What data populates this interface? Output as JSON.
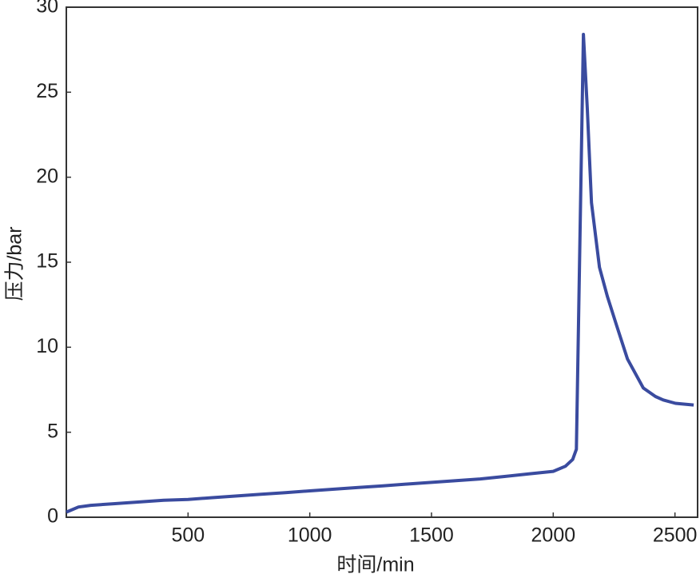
{
  "chart_data": {
    "type": "line",
    "x_label": "时间/min",
    "y_label": "压力/bar",
    "x": [
      0,
      50,
      100,
      200,
      300,
      400,
      500,
      600,
      700,
      800,
      900,
      1000,
      1100,
      1200,
      1300,
      1400,
      1500,
      1600,
      1700,
      1800,
      1900,
      2000,
      2050,
      2080,
      2095,
      2124,
      2140,
      2157,
      2190,
      2222,
      2260,
      2305,
      2370,
      2420,
      2452,
      2502,
      2577
    ],
    "series": [
      {
        "name": "压力",
        "color": "#3a4b9f",
        "values": [
          0.3,
          0.6,
          0.7,
          0.8,
          0.9,
          1.0,
          1.05,
          1.15,
          1.25,
          1.35,
          1.45,
          1.55,
          1.65,
          1.75,
          1.85,
          1.95,
          2.05,
          2.15,
          2.25,
          2.4,
          2.55,
          2.7,
          3.0,
          3.4,
          4.0,
          28.4,
          24.0,
          18.5,
          14.7,
          13.0,
          11.3,
          9.3,
          7.6,
          7.1,
          6.9,
          6.7,
          6.6
        ]
      }
    ],
    "xlim": [
      0,
      2593
    ],
    "ylim": [
      0,
      30
    ],
    "xticks": [
      500,
      1000,
      1500,
      2000,
      2500
    ],
    "yticks": [
      0,
      5,
      10,
      15,
      20,
      25,
      30
    ]
  }
}
